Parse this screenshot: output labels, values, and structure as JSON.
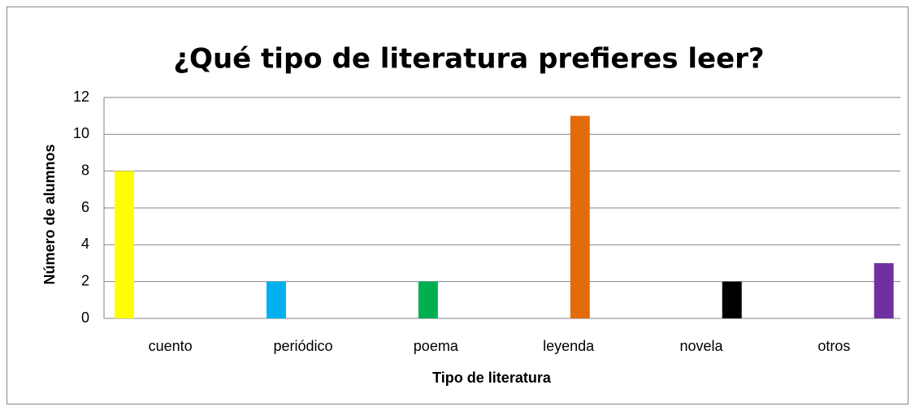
{
  "chart_data": {
    "type": "bar",
    "title": "¿Qué tipo de literatura prefieres leer?",
    "x_label": "Tipo de literatura",
    "y_label": "Número de alumnos",
    "categories": [
      "cuento",
      "periódico",
      "poema",
      "leyenda",
      "novela",
      "otros"
    ],
    "values": [
      8,
      2,
      2,
      11,
      2,
      3
    ],
    "colors": [
      "#ffff00",
      "#00b0f0",
      "#00b050",
      "#e36c0a",
      "#000000",
      "#7030a0"
    ],
    "ylim": [
      0,
      12
    ],
    "yticks": [
      0,
      2,
      4,
      6,
      8,
      10,
      12
    ],
    "grid": true
  }
}
